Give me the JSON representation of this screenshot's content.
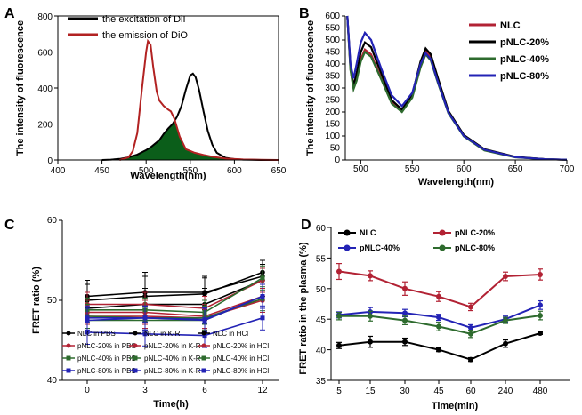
{
  "chart_data": [
    {
      "panel": "A",
      "type": "line",
      "xlabel": "Wavelength(nm)",
      "ylabel": "The intensity of fluorescence",
      "xlim": [
        400,
        650
      ],
      "ylim": [
        0,
        800
      ],
      "x_ticks": [
        400,
        450,
        500,
        550,
        600,
        650
      ],
      "y_ticks": [
        0,
        200,
        400,
        600,
        800
      ],
      "legend_position": "top-left",
      "overlap_fill_color": "#0b5e1a",
      "series": [
        {
          "name": "the excitation of DiI",
          "color": "#000000",
          "x": [
            450,
            460,
            470,
            480,
            490,
            500,
            505,
            510,
            515,
            520,
            525,
            530,
            535,
            540,
            545,
            550,
            553,
            556,
            560,
            565,
            570,
            575,
            580,
            590,
            600,
            610,
            620,
            630,
            640,
            650
          ],
          "y": [
            0,
            2,
            6,
            15,
            30,
            55,
            70,
            90,
            110,
            145,
            175,
            200,
            240,
            300,
            390,
            470,
            480,
            460,
            390,
            270,
            160,
            85,
            40,
            12,
            5,
            2,
            1,
            0,
            0,
            0
          ]
        },
        {
          "name": "the emission of DiO",
          "color": "#b22222",
          "x": [
            470,
            480,
            485,
            490,
            495,
            500,
            502,
            505,
            508,
            512,
            515,
            520,
            525,
            528,
            532,
            538,
            545,
            555,
            565,
            575,
            590,
            610,
            630,
            650
          ],
          "y": [
            0,
            15,
            50,
            150,
            380,
            600,
            660,
            640,
            520,
            380,
            330,
            300,
            280,
            270,
            230,
            130,
            60,
            40,
            28,
            18,
            8,
            3,
            1,
            0
          ]
        }
      ]
    },
    {
      "panel": "B",
      "type": "line",
      "xlabel": "Wavelength(nm)",
      "ylabel": "The intensity of fluorescence",
      "xlim": [
        485,
        700
      ],
      "ylim": [
        0,
        600
      ],
      "x_ticks": [
        500,
        550,
        600,
        650,
        700
      ],
      "y_ticks": [
        0,
        50,
        100,
        150,
        200,
        250,
        300,
        350,
        400,
        450,
        500,
        550,
        600
      ],
      "legend_position": "top-right",
      "x": [
        487,
        490,
        493,
        496,
        500,
        504,
        510,
        520,
        530,
        540,
        550,
        558,
        563,
        568,
        575,
        585,
        600,
        620,
        650,
        680,
        700
      ],
      "series": [
        {
          "name": "NLC",
          "color": "#b22234",
          "y": [
            600,
            380,
            300,
            340,
            420,
            460,
            440,
            340,
            240,
            205,
            270,
            400,
            455,
            430,
            330,
            200,
            100,
            42,
            12,
            3,
            1
          ]
        },
        {
          "name": "pNLC-20%",
          "color": "#000000",
          "y": [
            600,
            390,
            310,
            360,
            450,
            490,
            470,
            360,
            250,
            210,
            275,
            410,
            465,
            440,
            340,
            205,
            104,
            45,
            13,
            3,
            1
          ]
        },
        {
          "name": "pNLC-40%",
          "color": "#2e6b2e",
          "y": [
            600,
            375,
            295,
            330,
            410,
            450,
            430,
            335,
            235,
            200,
            260,
            385,
            440,
            415,
            320,
            195,
            98,
            40,
            11,
            3,
            1
          ]
        },
        {
          "name": "pNLC-80%",
          "color": "#2323b5",
          "y": [
            600,
            400,
            340,
            400,
            490,
            530,
            500,
            380,
            270,
            225,
            280,
            400,
            445,
            420,
            325,
            198,
            100,
            43,
            12,
            3,
            1
          ]
        }
      ]
    },
    {
      "panel": "C",
      "type": "line",
      "xlabel": "Time(h)",
      "ylabel": "FRET ratio (%)",
      "categories": [
        "0",
        "3",
        "6",
        "12"
      ],
      "ylim": [
        40,
        60
      ],
      "y_ticks": [
        40,
        50,
        60
      ],
      "legend_position": "bottom",
      "series": [
        {
          "name": "NLC   in PBS",
          "color": "#000000",
          "marker": "circle",
          "values": [
            50.5,
            51.0,
            51.0,
            53.0
          ],
          "errors": [
            2,
            2,
            2,
            1.5
          ]
        },
        {
          "name": "NLC   in K-R",
          "color": "#000000",
          "marker": "circle",
          "values": [
            50.0,
            50.5,
            50.8,
            53.5
          ],
          "errors": [
            2,
            3,
            2,
            1.5
          ]
        },
        {
          "name": "NLC   in HCl",
          "color": "#000000",
          "marker": "circle",
          "values": [
            49.0,
            49.5,
            49.5,
            52.5
          ],
          "errors": [
            2,
            2,
            2,
            2
          ]
        },
        {
          "name": "pNLC-20% in PBS",
          "color": "#b22234",
          "marker": "circle",
          "values": [
            48.5,
            48.5,
            48.0,
            50.5
          ],
          "errors": [
            1.5,
            1.5,
            1.5,
            1.5
          ]
        },
        {
          "name": "pNLC-20% in K-R",
          "color": "#b22234",
          "marker": "circle",
          "values": [
            49.5,
            49.5,
            49.0,
            52.5
          ],
          "errors": [
            1.5,
            1.5,
            1.5,
            1.5
          ]
        },
        {
          "name": "pNLC-20% in HCl",
          "color": "#b22234",
          "marker": "circle",
          "values": [
            48.0,
            48.0,
            47.8,
            50.0
          ],
          "errors": [
            1.5,
            1.5,
            1.5,
            1.5
          ]
        },
        {
          "name": "pNLC-40% in PBS",
          "color": "#2e6b2e",
          "marker": "square",
          "values": [
            48.0,
            47.8,
            47.8,
            50.2
          ],
          "errors": [
            1.5,
            1.5,
            1.5,
            1.5
          ]
        },
        {
          "name": "pNLC-40% in K-R",
          "color": "#2e6b2e",
          "marker": "square",
          "values": [
            48.8,
            48.8,
            48.5,
            52.8
          ],
          "errors": [
            1.5,
            1.5,
            1.5,
            1.5
          ]
        },
        {
          "name": "pNLC-40% in HCl",
          "color": "#2e6b2e",
          "marker": "square",
          "values": [
            47.5,
            47.5,
            47.5,
            50.5
          ],
          "errors": [
            1.5,
            1.5,
            1.5,
            1.5
          ]
        },
        {
          "name": "pNLC-80% in PBS",
          "color": "#2323b5",
          "marker": "square",
          "values": [
            46.0,
            45.8,
            45.6,
            47.8
          ],
          "errors": [
            1.5,
            1.5,
            1.5,
            1.5
          ]
        },
        {
          "name": "pNLC-80% in K-R",
          "color": "#2323b5",
          "marker": "square",
          "values": [
            47.5,
            47.8,
            47.5,
            50.5
          ],
          "errors": [
            1.5,
            1.5,
            1.5,
            1.5
          ]
        },
        {
          "name": "pNLC-80% in HCl",
          "color": "#2323b5",
          "marker": "square",
          "values": [
            47.8,
            47.8,
            47.6,
            50.5
          ],
          "errors": [
            1.5,
            1.5,
            1.5,
            1.5
          ]
        }
      ]
    },
    {
      "panel": "D",
      "type": "line",
      "xlabel": "Time(min)",
      "ylabel": "FRET ratio in the plasma (%)",
      "categories": [
        "5",
        "15",
        "30",
        "45",
        "60",
        "240",
        "480"
      ],
      "ylim": [
        35,
        60
      ],
      "y_ticks": [
        35,
        40,
        45,
        50,
        55,
        60
      ],
      "legend_position": "top",
      "series": [
        {
          "name": "NLC",
          "color": "#000000",
          "values": [
            40.7,
            41.3,
            41.3,
            40.0,
            38.4,
            41.0,
            42.7
          ],
          "errors": [
            0.5,
            0.9,
            0.6,
            0.3,
            0.3,
            0.6,
            0.2
          ]
        },
        {
          "name": "pNLC-20%",
          "color": "#b22234",
          "values": [
            52.8,
            52.1,
            50.0,
            48.7,
            47.0,
            52.0,
            52.3
          ],
          "errors": [
            1.3,
            0.8,
            1.1,
            0.8,
            0.6,
            0.7,
            0.9
          ]
        },
        {
          "name": "pNLC-40%",
          "color": "#2323b5",
          "values": [
            45.7,
            46.2,
            46.0,
            45.3,
            43.6,
            45.0,
            47.3
          ],
          "errors": [
            0.5,
            0.7,
            0.6,
            0.5,
            0.5,
            0.5,
            0.7
          ]
        },
        {
          "name": "pNLC-80%",
          "color": "#2e6b2e",
          "values": [
            45.5,
            45.5,
            44.8,
            43.8,
            42.6,
            44.8,
            45.6
          ],
          "errors": [
            0.6,
            0.8,
            0.7,
            0.7,
            0.6,
            0.5,
            0.7
          ]
        }
      ]
    }
  ]
}
